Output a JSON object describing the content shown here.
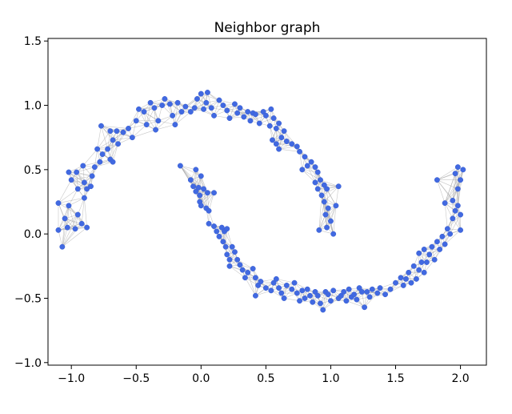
{
  "chart_data": {
    "type": "scatter",
    "title": "Neighbor graph",
    "xlabel": "",
    "ylabel": "",
    "xlim": [
      -1.18,
      2.2
    ],
    "ylim": [
      -1.02,
      1.52
    ],
    "xticks": [
      "−1.0",
      "−0.5",
      "0.0",
      "0.5",
      "1.0",
      "1.5",
      "2.0"
    ],
    "xtick_values": [
      -1.0,
      -0.5,
      0.0,
      0.5,
      1.0,
      1.5,
      2.0
    ],
    "yticks": [
      "−1.0",
      "−0.5",
      "0.0",
      "0.5",
      "1.0",
      "1.5"
    ],
    "ytick_values": [
      -1.0,
      -0.5,
      0.0,
      0.5,
      1.0,
      1.5
    ],
    "grid": false,
    "node_color": "#4169e1",
    "edge_color": "#9a9a9a",
    "k_neighbors": 8,
    "points": [
      [
        -1.1,
        0.03
      ],
      [
        -1.07,
        -0.1
      ],
      [
        -1.1,
        0.24
      ],
      [
        -1.05,
        0.12
      ],
      [
        -1.03,
        0.05
      ],
      [
        -1.02,
        0.22
      ],
      [
        -0.97,
        0.04
      ],
      [
        -0.95,
        0.15
      ],
      [
        -0.92,
        0.08
      ],
      [
        -0.88,
        0.05
      ],
      [
        -0.9,
        0.28
      ],
      [
        -0.95,
        0.35
      ],
      [
        -1.0,
        0.42
      ],
      [
        -0.96,
        0.48
      ],
      [
        -1.02,
        0.48
      ],
      [
        -0.9,
        0.4
      ],
      [
        -0.88,
        0.35
      ],
      [
        -0.85,
        0.37
      ],
      [
        -0.84,
        0.45
      ],
      [
        -0.82,
        0.52
      ],
      [
        -0.91,
        0.53
      ],
      [
        -0.78,
        0.56
      ],
      [
        -0.76,
        0.62
      ],
      [
        -0.8,
        0.66
      ],
      [
        -0.72,
        0.66
      ],
      [
        -0.7,
        0.58
      ],
      [
        -0.68,
        0.73
      ],
      [
        -0.77,
        0.84
      ],
      [
        -0.7,
        0.8
      ],
      [
        -0.65,
        0.8
      ],
      [
        -0.68,
        0.56
      ],
      [
        -0.64,
        0.7
      ],
      [
        -0.6,
        0.79
      ],
      [
        -0.56,
        0.82
      ],
      [
        -0.53,
        0.75
      ],
      [
        -0.5,
        0.88
      ],
      [
        -0.44,
        0.95
      ],
      [
        -0.42,
        0.85
      ],
      [
        -0.48,
        0.97
      ],
      [
        -0.39,
        1.02
      ],
      [
        -0.36,
        0.98
      ],
      [
        -0.35,
        0.81
      ],
      [
        -0.33,
        0.88
      ],
      [
        -0.3,
        1.0
      ],
      [
        -0.28,
        1.05
      ],
      [
        -0.24,
        1.01
      ],
      [
        -0.22,
        0.92
      ],
      [
        -0.2,
        0.85
      ],
      [
        -0.18,
        1.02
      ],
      [
        -0.15,
        0.95
      ],
      [
        -0.12,
        0.99
      ],
      [
        -0.08,
        0.95
      ],
      [
        -0.05,
        0.98
      ],
      [
        -0.03,
        1.05
      ],
      [
        0.0,
        1.09
      ],
      [
        0.04,
        1.02
      ],
      [
        0.05,
        1.1
      ],
      [
        0.02,
        0.97
      ],
      [
        0.08,
        0.98
      ],
      [
        0.1,
        0.92
      ],
      [
        0.14,
        1.04
      ],
      [
        0.17,
        1.0
      ],
      [
        0.2,
        0.96
      ],
      [
        0.22,
        0.9
      ],
      [
        0.26,
        1.01
      ],
      [
        0.28,
        0.94
      ],
      [
        0.3,
        0.98
      ],
      [
        0.33,
        0.91
      ],
      [
        0.36,
        0.95
      ],
      [
        0.38,
        0.88
      ],
      [
        0.4,
        0.94
      ],
      [
        0.42,
        0.93
      ],
      [
        0.45,
        0.86
      ],
      [
        0.48,
        0.95
      ],
      [
        0.5,
        0.92
      ],
      [
        0.54,
        0.97
      ],
      [
        0.53,
        0.84
      ],
      [
        0.56,
        0.9
      ],
      [
        0.58,
        0.82
      ],
      [
        0.6,
        0.86
      ],
      [
        0.55,
        0.73
      ],
      [
        0.58,
        0.7
      ],
      [
        0.6,
        0.66
      ],
      [
        0.62,
        0.75
      ],
      [
        0.64,
        0.8
      ],
      [
        0.66,
        0.72
      ],
      [
        0.7,
        0.7
      ],
      [
        0.74,
        0.68
      ],
      [
        0.76,
        0.64
      ],
      [
        0.8,
        0.6
      ],
      [
        0.78,
        0.5
      ],
      [
        0.82,
        0.53
      ],
      [
        0.85,
        0.56
      ],
      [
        0.88,
        0.52
      ],
      [
        0.9,
        0.48
      ],
      [
        0.92,
        0.42
      ],
      [
        0.95,
        0.38
      ],
      [
        0.88,
        0.4
      ],
      [
        0.9,
        0.35
      ],
      [
        0.93,
        0.3
      ],
      [
        0.95,
        0.25
      ],
      [
        0.97,
        0.35
      ],
      [
        0.98,
        0.2
      ],
      [
        0.96,
        0.15
      ],
      [
        1.0,
        0.1
      ],
      [
        0.97,
        0.05
      ],
      [
        0.91,
        0.03
      ],
      [
        1.02,
        0.0
      ],
      [
        1.06,
        0.37
      ],
      [
        1.04,
        0.22
      ],
      [
        -0.16,
        0.53
      ],
      [
        -0.08,
        0.42
      ],
      [
        -0.06,
        0.37
      ],
      [
        -0.04,
        0.33
      ],
      [
        -0.01,
        0.3
      ],
      [
        -0.02,
        0.36
      ],
      [
        -0.04,
        0.5
      ],
      [
        0.0,
        0.45
      ],
      [
        0.02,
        0.35
      ],
      [
        0.05,
        0.32
      ],
      [
        0.1,
        0.32
      ],
      [
        -0.01,
        0.25
      ],
      [
        0.0,
        0.22
      ],
      [
        0.04,
        0.2
      ],
      [
        0.06,
        0.18
      ],
      [
        0.06,
        0.08
      ],
      [
        0.1,
        0.06
      ],
      [
        0.12,
        0.02
      ],
      [
        0.14,
        -0.02
      ],
      [
        0.16,
        0.05
      ],
      [
        0.18,
        0.02
      ],
      [
        0.2,
        0.04
      ],
      [
        0.17,
        -0.06
      ],
      [
        0.19,
        -0.1
      ],
      [
        0.2,
        -0.16
      ],
      [
        0.22,
        -0.2
      ],
      [
        0.24,
        -0.1
      ],
      [
        0.26,
        -0.14
      ],
      [
        0.28,
        -0.2
      ],
      [
        0.22,
        -0.25
      ],
      [
        0.3,
        -0.24
      ],
      [
        0.32,
        -0.28
      ],
      [
        0.34,
        -0.34
      ],
      [
        0.36,
        -0.3
      ],
      [
        0.4,
        -0.27
      ],
      [
        0.42,
        -0.34
      ],
      [
        0.44,
        -0.4
      ],
      [
        0.46,
        -0.37
      ],
      [
        0.42,
        -0.48
      ],
      [
        0.5,
        -0.42
      ],
      [
        0.54,
        -0.44
      ],
      [
        0.56,
        -0.38
      ],
      [
        0.58,
        -0.35
      ],
      [
        0.6,
        -0.42
      ],
      [
        0.62,
        -0.46
      ],
      [
        0.64,
        -0.5
      ],
      [
        0.66,
        -0.4
      ],
      [
        0.7,
        -0.43
      ],
      [
        0.72,
        -0.38
      ],
      [
        0.74,
        -0.46
      ],
      [
        0.76,
        -0.52
      ],
      [
        0.78,
        -0.44
      ],
      [
        0.8,
        -0.5
      ],
      [
        0.82,
        -0.43
      ],
      [
        0.84,
        -0.48
      ],
      [
        0.86,
        -0.53
      ],
      [
        0.88,
        -0.45
      ],
      [
        0.9,
        -0.48
      ],
      [
        0.92,
        -0.54
      ],
      [
        0.94,
        -0.59
      ],
      [
        0.96,
        -0.45
      ],
      [
        0.98,
        -0.47
      ],
      [
        1.0,
        -0.52
      ],
      [
        1.02,
        -0.44
      ],
      [
        1.06,
        -0.5
      ],
      [
        1.08,
        -0.48
      ],
      [
        1.1,
        -0.45
      ],
      [
        1.12,
        -0.52
      ],
      [
        1.14,
        -0.43
      ],
      [
        1.16,
        -0.49
      ],
      [
        1.18,
        -0.47
      ],
      [
        1.2,
        -0.51
      ],
      [
        1.22,
        -0.42
      ],
      [
        1.24,
        -0.45
      ],
      [
        1.26,
        -0.57
      ],
      [
        1.28,
        -0.45
      ],
      [
        1.3,
        -0.49
      ],
      [
        1.32,
        -0.43
      ],
      [
        1.36,
        -0.46
      ],
      [
        1.38,
        -0.42
      ],
      [
        1.42,
        -0.47
      ],
      [
        1.46,
        -0.43
      ],
      [
        1.5,
        -0.38
      ],
      [
        1.54,
        -0.34
      ],
      [
        1.56,
        -0.4
      ],
      [
        1.58,
        -0.35
      ],
      [
        1.62,
        -0.38
      ],
      [
        1.6,
        -0.3
      ],
      [
        1.64,
        -0.25
      ],
      [
        1.66,
        -0.35
      ],
      [
        1.68,
        -0.28
      ],
      [
        1.7,
        -0.22
      ],
      [
        1.72,
        -0.3
      ],
      [
        1.68,
        -0.15
      ],
      [
        1.72,
        -0.12
      ],
      [
        1.74,
        -0.22
      ],
      [
        1.76,
        -0.16
      ],
      [
        1.78,
        -0.1
      ],
      [
        1.8,
        -0.2
      ],
      [
        1.82,
        -0.06
      ],
      [
        1.84,
        -0.12
      ],
      [
        1.86,
        -0.02
      ],
      [
        1.88,
        -0.08
      ],
      [
        1.9,
        0.04
      ],
      [
        1.92,
        0.0
      ],
      [
        1.94,
        0.12
      ],
      [
        1.96,
        0.18
      ],
      [
        1.94,
        0.26
      ],
      [
        1.98,
        0.22
      ],
      [
        2.0,
        0.15
      ],
      [
        1.98,
        0.35
      ],
      [
        2.0,
        0.42
      ],
      [
        1.96,
        0.47
      ],
      [
        2.02,
        0.5
      ],
      [
        1.98,
        0.52
      ],
      [
        1.82,
        0.42
      ],
      [
        1.88,
        0.24
      ],
      [
        2.0,
        0.03
      ]
    ]
  }
}
